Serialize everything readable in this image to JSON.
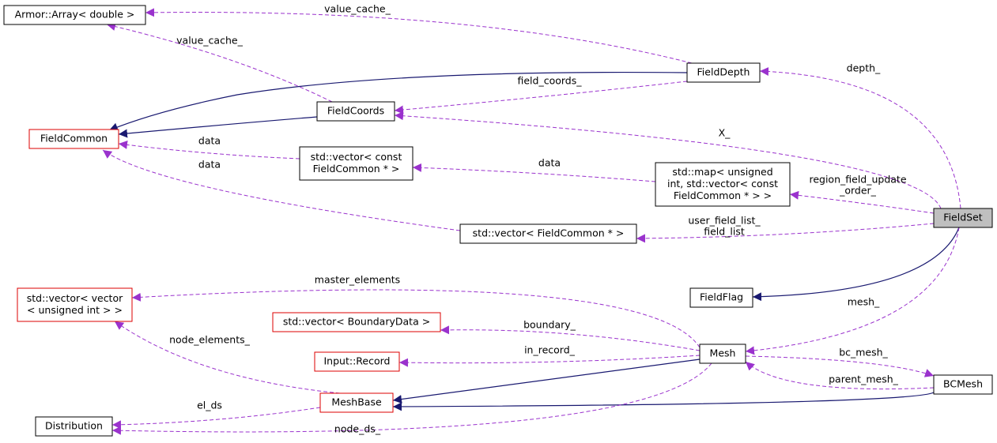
{
  "nodes": [
    {
      "label": [
        "Armor::Array< double >"
      ]
    },
    {
      "label": [
        "FieldDepth"
      ]
    },
    {
      "label": [
        "FieldCoords"
      ]
    },
    {
      "label": [
        "FieldCommon"
      ]
    },
    {
      "label": [
        "std::vector< const",
        "FieldCommon * >"
      ]
    },
    {
      "label": [
        "std::map< unsigned",
        "int, std::vector< const",
        "FieldCommon * > >"
      ]
    },
    {
      "label": [
        "FieldSet"
      ]
    },
    {
      "label": [
        "std::vector< FieldCommon * >"
      ]
    },
    {
      "label": [
        "FieldFlag"
      ]
    },
    {
      "label": [
        "std::vector< vector",
        "< unsigned int > >"
      ]
    },
    {
      "label": [
        "std::vector< BoundaryData >"
      ]
    },
    {
      "label": [
        "Input::Record"
      ]
    },
    {
      "label": [
        "Mesh"
      ]
    },
    {
      "label": [
        "BCMesh"
      ]
    },
    {
      "label": [
        "MeshBase"
      ]
    },
    {
      "label": [
        "Distribution"
      ]
    }
  ],
  "edges": [
    {
      "label": [
        "value_cache_"
      ]
    },
    {
      "label": [
        "value_cache_"
      ]
    },
    {
      "label": [
        "field_coords_"
      ]
    },
    {
      "label": [
        "depth_"
      ]
    },
    {
      "label": [
        "X_"
      ]
    },
    {
      "label": [
        "data"
      ]
    },
    {
      "label": [
        "data"
      ]
    },
    {
      "label": [
        "data"
      ]
    },
    {
      "label": [
        "region_field_update",
        "_order_"
      ]
    },
    {
      "label": [
        "user_field_list_",
        "field_list"
      ]
    },
    {
      "label": [
        "mesh_"
      ]
    },
    {
      "label": [
        "master_elements"
      ]
    },
    {
      "label": [
        "boundary_"
      ]
    },
    {
      "label": [
        "in_record_"
      ]
    },
    {
      "label": [
        "bc_mesh_"
      ]
    },
    {
      "label": [
        "parent_mesh_"
      ]
    },
    {
      "label": [
        "node_elements_"
      ]
    },
    {
      "label": [
        "el_ds"
      ]
    },
    {
      "label": [
        "node_ds_"
      ]
    }
  ]
}
